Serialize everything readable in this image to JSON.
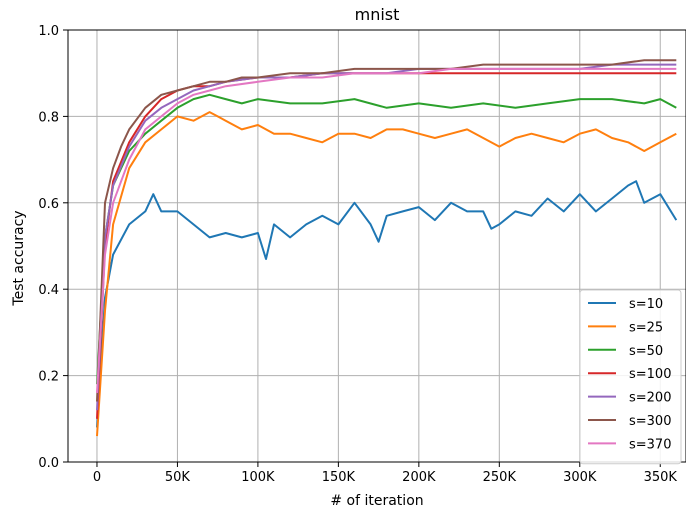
{
  "chart_data": {
    "type": "line",
    "title": "mnist",
    "xlabel": "# of iteration",
    "ylabel": "Test accuracy",
    "xlim": [
      -18000,
      366000
    ],
    "ylim": [
      0.0,
      1.0
    ],
    "xticks": [
      0,
      50000,
      100000,
      150000,
      200000,
      250000,
      300000,
      350000
    ],
    "xtick_labels": [
      "0",
      "50K",
      "100K",
      "150K",
      "200K",
      "250K",
      "300K",
      "350K"
    ],
    "yticks": [
      0.0,
      0.2,
      0.4,
      0.6,
      0.8,
      1.0
    ],
    "ytick_labels": [
      "0.0",
      "0.2",
      "0.4",
      "0.6",
      "0.8",
      "1.0"
    ],
    "grid": true,
    "legend_position": "lower-right",
    "series": [
      {
        "name": "s=10",
        "color": "#1f77b4",
        "x": [
          0,
          5000,
          10000,
          20000,
          30000,
          35000,
          40000,
          50000,
          60000,
          70000,
          80000,
          90000,
          100000,
          105000,
          110000,
          120000,
          130000,
          140000,
          150000,
          160000,
          170000,
          175000,
          180000,
          190000,
          200000,
          210000,
          220000,
          230000,
          240000,
          245000,
          250000,
          260000,
          270000,
          280000,
          290000,
          300000,
          310000,
          320000,
          330000,
          335000,
          340000,
          350000,
          360000
        ],
        "y": [
          0.08,
          0.38,
          0.48,
          0.55,
          0.58,
          0.62,
          0.58,
          0.58,
          0.55,
          0.52,
          0.53,
          0.52,
          0.53,
          0.47,
          0.55,
          0.52,
          0.55,
          0.57,
          0.55,
          0.6,
          0.55,
          0.51,
          0.57,
          0.58,
          0.59,
          0.56,
          0.6,
          0.58,
          0.58,
          0.54,
          0.55,
          0.58,
          0.57,
          0.61,
          0.58,
          0.62,
          0.58,
          0.61,
          0.64,
          0.65,
          0.6,
          0.62,
          0.56
        ]
      },
      {
        "name": "s=25",
        "color": "#ff7f0e",
        "x": [
          0,
          5000,
          10000,
          20000,
          30000,
          40000,
          50000,
          60000,
          70000,
          75000,
          80000,
          90000,
          100000,
          110000,
          120000,
          130000,
          140000,
          150000,
          160000,
          170000,
          180000,
          190000,
          200000,
          210000,
          220000,
          230000,
          240000,
          250000,
          260000,
          270000,
          280000,
          290000,
          300000,
          310000,
          320000,
          330000,
          340000,
          350000,
          360000
        ],
        "y": [
          0.06,
          0.35,
          0.55,
          0.68,
          0.74,
          0.77,
          0.8,
          0.79,
          0.81,
          0.8,
          0.79,
          0.77,
          0.78,
          0.76,
          0.76,
          0.75,
          0.74,
          0.76,
          0.76,
          0.75,
          0.77,
          0.77,
          0.76,
          0.75,
          0.76,
          0.77,
          0.75,
          0.73,
          0.75,
          0.76,
          0.75,
          0.74,
          0.76,
          0.77,
          0.75,
          0.74,
          0.72,
          0.74,
          0.76
        ]
      },
      {
        "name": "s=50",
        "color": "#2ca02c",
        "x": [
          0,
          5000,
          10000,
          20000,
          30000,
          40000,
          50000,
          60000,
          70000,
          80000,
          90000,
          100000,
          120000,
          140000,
          160000,
          180000,
          200000,
          220000,
          240000,
          260000,
          280000,
          300000,
          320000,
          340000,
          350000,
          360000
        ],
        "y": [
          0.18,
          0.52,
          0.64,
          0.72,
          0.76,
          0.79,
          0.82,
          0.84,
          0.85,
          0.84,
          0.83,
          0.84,
          0.83,
          0.83,
          0.84,
          0.82,
          0.83,
          0.82,
          0.83,
          0.82,
          0.83,
          0.84,
          0.84,
          0.83,
          0.84,
          0.82
        ]
      },
      {
        "name": "s=100",
        "color": "#d62728",
        "x": [
          0,
          5000,
          10000,
          20000,
          30000,
          40000,
          50000,
          60000,
          70000,
          80000,
          100000,
          120000,
          140000,
          160000,
          180000,
          200000,
          220000,
          240000,
          260000,
          280000,
          300000,
          320000,
          340000,
          360000
        ],
        "y": [
          0.1,
          0.5,
          0.65,
          0.74,
          0.8,
          0.84,
          0.86,
          0.87,
          0.87,
          0.88,
          0.89,
          0.89,
          0.9,
          0.9,
          0.9,
          0.9,
          0.9,
          0.9,
          0.9,
          0.9,
          0.9,
          0.9,
          0.9,
          0.9
        ]
      },
      {
        "name": "s=200",
        "color": "#9467bd",
        "x": [
          0,
          5000,
          10000,
          20000,
          30000,
          40000,
          50000,
          60000,
          70000,
          80000,
          100000,
          120000,
          140000,
          160000,
          180000,
          200000,
          220000,
          240000,
          260000,
          280000,
          300000,
          320000,
          340000,
          360000
        ],
        "y": [
          0.12,
          0.52,
          0.64,
          0.73,
          0.79,
          0.82,
          0.84,
          0.86,
          0.87,
          0.88,
          0.89,
          0.89,
          0.9,
          0.9,
          0.9,
          0.91,
          0.91,
          0.91,
          0.91,
          0.91,
          0.91,
          0.92,
          0.92,
          0.92
        ]
      },
      {
        "name": "s=300",
        "color": "#8c564b",
        "x": [
          0,
          5000,
          10000,
          15000,
          20000,
          30000,
          40000,
          50000,
          60000,
          70000,
          80000,
          90000,
          100000,
          120000,
          140000,
          160000,
          180000,
          200000,
          220000,
          240000,
          260000,
          280000,
          300000,
          320000,
          340000,
          360000
        ],
        "y": [
          0.14,
          0.6,
          0.68,
          0.73,
          0.77,
          0.82,
          0.85,
          0.86,
          0.87,
          0.88,
          0.88,
          0.89,
          0.89,
          0.9,
          0.9,
          0.91,
          0.91,
          0.91,
          0.91,
          0.92,
          0.92,
          0.92,
          0.92,
          0.92,
          0.93,
          0.93
        ]
      },
      {
        "name": "s=370",
        "color": "#e377c2",
        "x": [
          0,
          5000,
          10000,
          20000,
          30000,
          40000,
          50000,
          60000,
          70000,
          80000,
          100000,
          120000,
          140000,
          160000,
          180000,
          200000,
          220000,
          240000,
          260000,
          280000,
          300000,
          320000,
          340000,
          360000
        ],
        "y": [
          0.16,
          0.48,
          0.6,
          0.7,
          0.77,
          0.8,
          0.83,
          0.85,
          0.86,
          0.87,
          0.88,
          0.89,
          0.89,
          0.9,
          0.9,
          0.9,
          0.91,
          0.91,
          0.91,
          0.91,
          0.91,
          0.91,
          0.91,
          0.91
        ]
      }
    ]
  }
}
